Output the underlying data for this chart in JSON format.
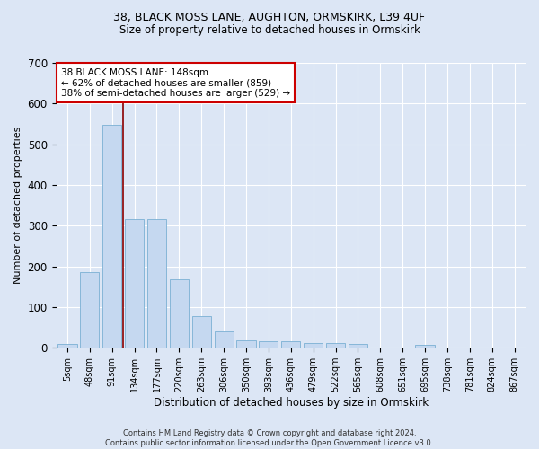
{
  "title1": "38, BLACK MOSS LANE, AUGHTON, ORMSKIRK, L39 4UF",
  "title2": "Size of property relative to detached houses in Ormskirk",
  "xlabel": "Distribution of detached houses by size in Ormskirk",
  "ylabel": "Number of detached properties",
  "footnote": "Contains HM Land Registry data © Crown copyright and database right 2024.\nContains public sector information licensed under the Open Government Licence v3.0.",
  "bar_labels": [
    "5sqm",
    "48sqm",
    "91sqm",
    "134sqm",
    "177sqm",
    "220sqm",
    "263sqm",
    "306sqm",
    "350sqm",
    "393sqm",
    "436sqm",
    "479sqm",
    "522sqm",
    "565sqm",
    "608sqm",
    "651sqm",
    "695sqm",
    "738sqm",
    "781sqm",
    "824sqm",
    "867sqm"
  ],
  "bar_values": [
    10,
    185,
    548,
    316,
    316,
    168,
    77,
    40,
    18,
    17,
    15,
    11,
    11,
    10,
    0,
    0,
    8,
    0,
    0,
    0,
    0
  ],
  "bar_color": "#c5d8f0",
  "bar_edge_color": "#7ab0d4",
  "vline_x": 2.5,
  "vline_color": "#8b0000",
  "annotation_title": "38 BLACK MOSS LANE: 148sqm",
  "annotation_line1": "← 62% of detached houses are smaller (859)",
  "annotation_line2": "38% of semi-detached houses are larger (529) →",
  "annotation_box_color": "white",
  "annotation_box_edge": "#cc0000",
  "ylim": [
    0,
    700
  ],
  "yticks": [
    0,
    100,
    200,
    300,
    400,
    500,
    600,
    700
  ],
  "bg_color": "#dce6f5",
  "plot_bg_color": "#dce6f5",
  "grid_color": "white",
  "title_fontsize": 9,
  "subtitle_fontsize": 8.5,
  "bar_label_fontsize": 7,
  "ylabel_fontsize": 8,
  "xlabel_fontsize": 8.5,
  "footnote_fontsize": 6,
  "annotation_fontsize": 7.5
}
